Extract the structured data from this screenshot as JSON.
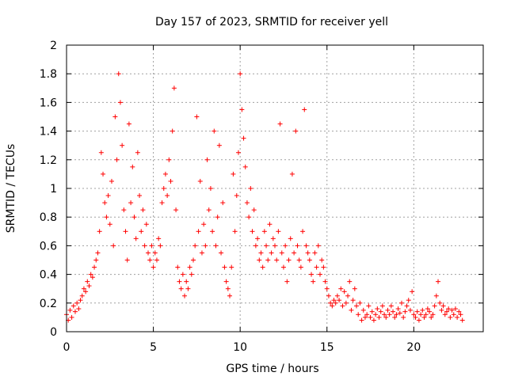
{
  "chart_data": {
    "type": "scatter",
    "title": "Day 157 of 2023, SRMTID for receiver yell",
    "xlabel": "GPS time / hours",
    "ylabel": "SRMTID / TECUs",
    "xlim": [
      0,
      24
    ],
    "ylim": [
      0,
      2
    ],
    "grid": true,
    "marker": "plus",
    "color": "#ff0000",
    "xticks": [
      0,
      5,
      10,
      15,
      20
    ],
    "xtick_labels": [
      "0",
      "5",
      "10",
      "15",
      "20"
    ],
    "yticks": [
      0,
      0.2,
      0.4,
      0.6,
      0.8,
      1,
      1.2,
      1.4,
      1.6,
      1.8,
      2
    ],
    "ytick_labels": [
      "0",
      "0.2",
      "0.4",
      "0.6",
      "0.8",
      "1",
      "1.2",
      "1.4",
      "1.6",
      "1.8",
      "2"
    ],
    "series": [
      {
        "name": "SRMTID",
        "points": [
          [
            0.0,
            0.12
          ],
          [
            0.1,
            0.08
          ],
          [
            0.2,
            0.15
          ],
          [
            0.3,
            0.1
          ],
          [
            0.4,
            0.18
          ],
          [
            0.5,
            0.14
          ],
          [
            0.6,
            0.2
          ],
          [
            0.7,
            0.16
          ],
          [
            0.8,
            0.22
          ],
          [
            0.9,
            0.25
          ],
          [
            1.0,
            0.3
          ],
          [
            1.1,
            0.28
          ],
          [
            1.2,
            0.35
          ],
          [
            1.3,
            0.32
          ],
          [
            1.4,
            0.4
          ],
          [
            1.5,
            0.38
          ],
          [
            1.6,
            0.45
          ],
          [
            1.7,
            0.5
          ],
          [
            1.8,
            0.55
          ],
          [
            1.9,
            0.7
          ],
          [
            2.0,
            1.25
          ],
          [
            2.1,
            1.1
          ],
          [
            2.2,
            0.9
          ],
          [
            2.3,
            0.8
          ],
          [
            2.4,
            0.95
          ],
          [
            2.5,
            0.75
          ],
          [
            2.6,
            1.05
          ],
          [
            2.7,
            0.6
          ],
          [
            2.8,
            1.5
          ],
          [
            2.9,
            1.2
          ],
          [
            3.0,
            1.8
          ],
          [
            3.1,
            1.6
          ],
          [
            3.2,
            1.3
          ],
          [
            3.3,
            0.85
          ],
          [
            3.4,
            0.7
          ],
          [
            3.5,
            0.5
          ],
          [
            3.6,
            1.45
          ],
          [
            3.7,
            0.9
          ],
          [
            3.8,
            1.15
          ],
          [
            3.9,
            0.8
          ],
          [
            4.0,
            0.65
          ],
          [
            4.1,
            1.25
          ],
          [
            4.2,
            0.95
          ],
          [
            4.3,
            0.7
          ],
          [
            4.4,
            0.85
          ],
          [
            4.5,
            0.6
          ],
          [
            4.6,
            0.75
          ],
          [
            4.7,
            0.55
          ],
          [
            4.8,
            0.5
          ],
          [
            4.9,
            0.6
          ],
          [
            5.0,
            0.45
          ],
          [
            5.1,
            0.55
          ],
          [
            5.2,
            0.5
          ],
          [
            5.3,
            0.65
          ],
          [
            5.4,
            0.6
          ],
          [
            5.5,
            0.9
          ],
          [
            5.6,
            1.0
          ],
          [
            5.7,
            1.1
          ],
          [
            5.8,
            0.95
          ],
          [
            5.9,
            1.2
          ],
          [
            6.0,
            1.05
          ],
          [
            6.1,
            1.4
          ],
          [
            6.2,
            1.7
          ],
          [
            6.3,
            0.85
          ],
          [
            6.4,
            0.45
          ],
          [
            6.5,
            0.35
          ],
          [
            6.6,
            0.3
          ],
          [
            6.7,
            0.4
          ],
          [
            6.8,
            0.25
          ],
          [
            6.9,
            0.35
          ],
          [
            7.0,
            0.3
          ],
          [
            7.1,
            0.45
          ],
          [
            7.2,
            0.4
          ],
          [
            7.3,
            0.5
          ],
          [
            7.4,
            0.6
          ],
          [
            7.5,
            1.5
          ],
          [
            7.6,
            0.7
          ],
          [
            7.7,
            1.05
          ],
          [
            7.8,
            0.55
          ],
          [
            7.9,
            0.75
          ],
          [
            8.0,
            0.6
          ],
          [
            8.1,
            1.2
          ],
          [
            8.2,
            0.85
          ],
          [
            8.3,
            1.0
          ],
          [
            8.4,
            0.7
          ],
          [
            8.5,
            1.4
          ],
          [
            8.6,
            0.6
          ],
          [
            8.7,
            0.8
          ],
          [
            8.8,
            1.3
          ],
          [
            8.9,
            0.55
          ],
          [
            9.0,
            0.9
          ],
          [
            9.1,
            0.45
          ],
          [
            9.2,
            0.35
          ],
          [
            9.3,
            0.3
          ],
          [
            9.4,
            0.25
          ],
          [
            9.5,
            0.45
          ],
          [
            9.6,
            1.1
          ],
          [
            9.7,
            0.7
          ],
          [
            9.8,
            0.95
          ],
          [
            9.9,
            1.25
          ],
          [
            10.0,
            1.8
          ],
          [
            10.1,
            1.55
          ],
          [
            10.2,
            1.35
          ],
          [
            10.3,
            1.15
          ],
          [
            10.4,
            0.9
          ],
          [
            10.5,
            0.8
          ],
          [
            10.6,
            1.0
          ],
          [
            10.7,
            0.7
          ],
          [
            10.8,
            0.85
          ],
          [
            10.9,
            0.6
          ],
          [
            11.0,
            0.65
          ],
          [
            11.1,
            0.5
          ],
          [
            11.2,
            0.55
          ],
          [
            11.3,
            0.45
          ],
          [
            11.4,
            0.7
          ],
          [
            11.5,
            0.6
          ],
          [
            11.6,
            0.5
          ],
          [
            11.7,
            0.75
          ],
          [
            11.8,
            0.55
          ],
          [
            11.9,
            0.65
          ],
          [
            12.0,
            0.6
          ],
          [
            12.1,
            0.5
          ],
          [
            12.2,
            0.7
          ],
          [
            12.3,
            1.45
          ],
          [
            12.4,
            0.55
          ],
          [
            12.5,
            0.45
          ],
          [
            12.6,
            0.6
          ],
          [
            12.7,
            0.35
          ],
          [
            12.8,
            0.5
          ],
          [
            12.9,
            0.65
          ],
          [
            13.0,
            1.1
          ],
          [
            13.1,
            0.55
          ],
          [
            13.2,
            1.4
          ],
          [
            13.3,
            0.6
          ],
          [
            13.4,
            0.5
          ],
          [
            13.5,
            0.45
          ],
          [
            13.6,
            0.7
          ],
          [
            13.7,
            1.55
          ],
          [
            13.8,
            0.6
          ],
          [
            13.9,
            0.55
          ],
          [
            14.0,
            0.5
          ],
          [
            14.1,
            0.4
          ],
          [
            14.2,
            0.35
          ],
          [
            14.3,
            0.55
          ],
          [
            14.4,
            0.45
          ],
          [
            14.5,
            0.6
          ],
          [
            14.6,
            0.4
          ],
          [
            14.7,
            0.5
          ],
          [
            14.8,
            0.45
          ],
          [
            14.9,
            0.35
          ],
          [
            15.0,
            0.3
          ],
          [
            15.1,
            0.25
          ],
          [
            15.2,
            0.2
          ],
          [
            15.3,
            0.18
          ],
          [
            15.4,
            0.22
          ],
          [
            15.5,
            0.2
          ],
          [
            15.6,
            0.25
          ],
          [
            15.7,
            0.22
          ],
          [
            15.8,
            0.3
          ],
          [
            15.9,
            0.18
          ],
          [
            16.0,
            0.28
          ],
          [
            16.1,
            0.2
          ],
          [
            16.2,
            0.25
          ],
          [
            16.3,
            0.35
          ],
          [
            16.4,
            0.15
          ],
          [
            16.5,
            0.22
          ],
          [
            16.6,
            0.3
          ],
          [
            16.7,
            0.18
          ],
          [
            16.8,
            0.12
          ],
          [
            16.9,
            0.2
          ],
          [
            17.0,
            0.08
          ],
          [
            17.1,
            0.15
          ],
          [
            17.2,
            0.1
          ],
          [
            17.3,
            0.12
          ],
          [
            17.4,
            0.18
          ],
          [
            17.5,
            0.1
          ],
          [
            17.6,
            0.14
          ],
          [
            17.7,
            0.08
          ],
          [
            17.8,
            0.12
          ],
          [
            17.9,
            0.16
          ],
          [
            18.0,
            0.1
          ],
          [
            18.1,
            0.14
          ],
          [
            18.2,
            0.18
          ],
          [
            18.3,
            0.12
          ],
          [
            18.4,
            0.1
          ],
          [
            18.5,
            0.15
          ],
          [
            18.6,
            0.12
          ],
          [
            18.7,
            0.18
          ],
          [
            18.8,
            0.14
          ],
          [
            18.9,
            0.1
          ],
          [
            19.0,
            0.12
          ],
          [
            19.1,
            0.16
          ],
          [
            19.2,
            0.13
          ],
          [
            19.3,
            0.2
          ],
          [
            19.4,
            0.1
          ],
          [
            19.5,
            0.14
          ],
          [
            19.6,
            0.18
          ],
          [
            19.7,
            0.22
          ],
          [
            19.8,
            0.15
          ],
          [
            19.9,
            0.28
          ],
          [
            20.0,
            0.12
          ],
          [
            20.1,
            0.1
          ],
          [
            20.2,
            0.14
          ],
          [
            20.3,
            0.08
          ],
          [
            20.4,
            0.12
          ],
          [
            20.5,
            0.15
          ],
          [
            20.6,
            0.1
          ],
          [
            20.7,
            0.12
          ],
          [
            20.8,
            0.16
          ],
          [
            20.9,
            0.14
          ],
          [
            21.0,
            0.1
          ],
          [
            21.1,
            0.12
          ],
          [
            21.2,
            0.18
          ],
          [
            21.3,
            0.25
          ],
          [
            21.4,
            0.35
          ],
          [
            21.5,
            0.2
          ],
          [
            21.6,
            0.15
          ],
          [
            21.7,
            0.18
          ],
          [
            21.8,
            0.12
          ],
          [
            21.9,
            0.14
          ],
          [
            22.0,
            0.16
          ],
          [
            22.1,
            0.1
          ],
          [
            22.2,
            0.15
          ],
          [
            22.3,
            0.12
          ],
          [
            22.4,
            0.16
          ],
          [
            22.5,
            0.1
          ],
          [
            22.6,
            0.14
          ],
          [
            22.7,
            0.12
          ],
          [
            22.8,
            0.08
          ]
        ]
      }
    ]
  }
}
